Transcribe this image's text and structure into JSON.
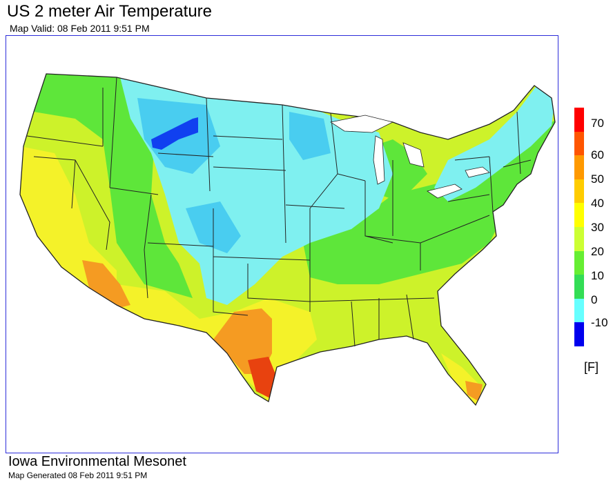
{
  "header": {
    "title": "US 2 meter Air Temperature",
    "valid": "Map Valid: 08 Feb 2011 9:51 PM"
  },
  "legend": {
    "unit": "[F]",
    "ticks": [
      "70",
      "60",
      "50",
      "40",
      "30",
      "20",
      "10",
      "0",
      "-10"
    ],
    "colors": [
      "#ff0000",
      "#ff5500",
      "#ff9900",
      "#ffcc00",
      "#ffff00",
      "#ccff33",
      "#66ee33",
      "#33dd55",
      "#66ffff",
      "#33ccff",
      "#0088ff",
      "#0000ee"
    ]
  },
  "footer": {
    "org": "Iowa Environmental Mesonet",
    "generated": "Map Generated 08 Feb 2011 9:51 PM"
  },
  "map": {
    "region": "contiguous United States",
    "palette": {
      "red": "#e8420f",
      "orange": "#f59b22",
      "yellow": "#f4f229",
      "yellowgreen": "#cdf22a",
      "green": "#5ee63a",
      "cyan": "#7ff0f0",
      "lightblue": "#49cdf0",
      "blue": "#1040f0",
      "border": "#222222"
    }
  }
}
